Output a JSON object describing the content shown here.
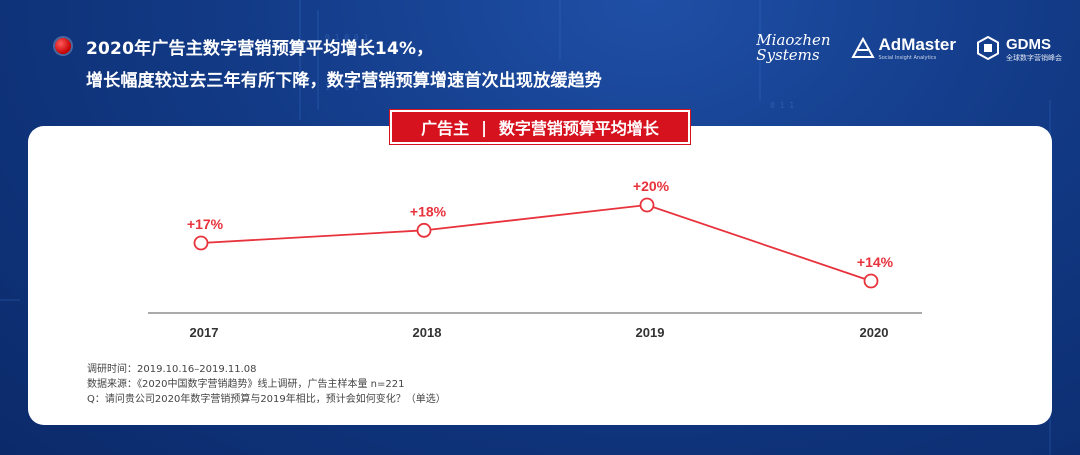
{
  "header": {
    "line1": "2020年广告主数字营销预算平均增长14%，",
    "line2": "增长幅度较过去三年有所下降，数字营销预算增速首次出现放缓趋势"
  },
  "logos": {
    "miaozhen_line1": "Miaozhen",
    "miaozhen_line2": "Systems",
    "admaster": "AdMaster",
    "admaster_tagline": "Social Insight Analytics",
    "gdms": "GDMS",
    "gdms_sub": "全球数字营销峰会"
  },
  "chart_title": {
    "left": "广告主",
    "separator": "|",
    "right": "数字营销预算平均增长"
  },
  "chart_data": {
    "type": "line",
    "title": "广告主 | 数字营销预算平均增长",
    "x": [
      "2017",
      "2018",
      "2019",
      "2020"
    ],
    "values": [
      17,
      18,
      20,
      14
    ],
    "data_labels": [
      "+17%",
      "+18%",
      "+20%",
      "+14%"
    ],
    "unit": "%",
    "ylim": [
      10,
      22
    ],
    "grid": false,
    "color": "#e8323c"
  },
  "notes": {
    "survey_time": "调研时间：2019.10.16–2019.11.08",
    "source": "数据来源：《2020中国数字营销趋势》线上调研，广告主样本量 n=221",
    "question": "Q：请问贵公司2020年数字营销预算与2019年相比，预计会如何变化？（单选）"
  },
  "colors": {
    "accent": "#d7121f",
    "line": "#e8323c",
    "background": "#123a86"
  }
}
